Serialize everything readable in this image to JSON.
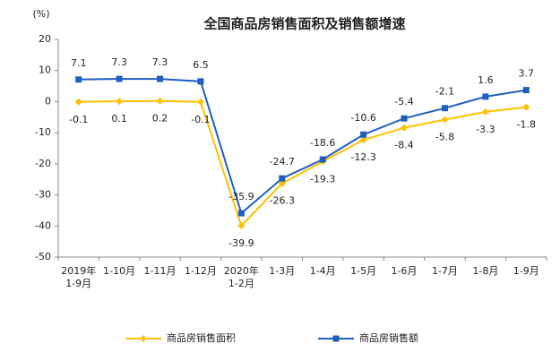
{
  "chart_data": {
    "type": "line",
    "title": "全国商品房销售面积及销售额增速",
    "y_label": "(%)",
    "categories": [
      [
        "2019年",
        "1-9月"
      ],
      "1-10月",
      "1-11月",
      "1-12月",
      [
        "2020年",
        "1-2月"
      ],
      "1-3月",
      "1-4月",
      "1-5月",
      "1-6月",
      "1-7月",
      "1-8月",
      "1-9月"
    ],
    "series": [
      {
        "name": "商品房销售面积",
        "color": "#FFC000",
        "marker": "diamond",
        "label_position": "below",
        "values": [
          -0.1,
          0.1,
          0.2,
          -0.1,
          -39.9,
          -26.3,
          -19.3,
          -12.3,
          -8.4,
          -5.8,
          -3.3,
          -1.8
        ]
      },
      {
        "name": "商品房销售额",
        "color": "#1F5FBF",
        "marker": "square",
        "label_position": "above",
        "values": [
          7.1,
          7.3,
          7.3,
          6.5,
          -35.9,
          -24.7,
          -18.6,
          -10.6,
          -5.4,
          -2.1,
          1.6,
          3.7
        ]
      }
    ],
    "ylim": [
      -50,
      20
    ],
    "yticks": [
      -50,
      -40,
      -30,
      -20,
      -10,
      0,
      10,
      20
    ],
    "grid": false,
    "legend": "bottom"
  }
}
